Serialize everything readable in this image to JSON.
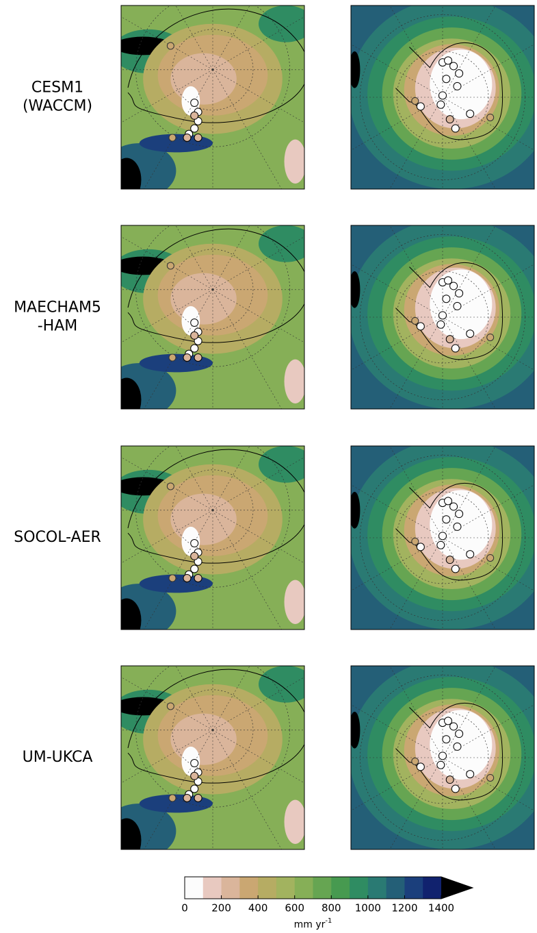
{
  "rows": [
    {
      "label": [
        "CESM1",
        "(WACCM)"
      ]
    },
    {
      "label": [
        "MAECHAM5",
        "-HAM"
      ]
    },
    {
      "label": [
        "SOCOL-AER"
      ]
    },
    {
      "label": [
        "UM-UKCA"
      ]
    }
  ],
  "colorbar": {
    "lim": [
      0,
      1400
    ],
    "ticks": [
      0,
      200,
      400,
      600,
      800,
      1000,
      1200,
      1400
    ],
    "colors": [
      "#fcfcfc",
      "#e8c9c0",
      "#dab59b",
      "#caa772",
      "#b6ac63",
      "#a2b35f",
      "#86af57",
      "#66a552",
      "#479a50",
      "#2f8c62",
      "#2a7a73",
      "#245f77",
      "#1b3f7c",
      "#11226e"
    ],
    "extend_color": "#000000",
    "label": "mm yr",
    "label_sup": "-1"
  }
}
